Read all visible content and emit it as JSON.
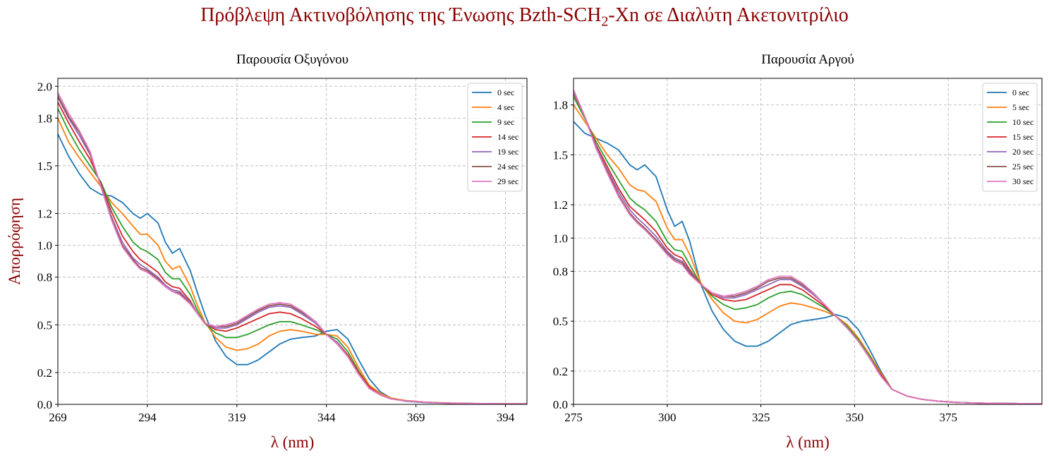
{
  "figure": {
    "title_prefix": "Πρόβλεψη Ακτινοβόλησης της Ένωσης Bzth-SCH",
    "title_sub": "2",
    "title_suffix": "-Xn σε Διαλύτη Ακετονιτρίλιο",
    "title_color": "#8b0000"
  },
  "chart_data": [
    {
      "type": "line",
      "title": "Παρουσία Οξυγόνου",
      "xlabel": "λ (nm)",
      "ylabel": "Απορρόφηση",
      "xlim": [
        269,
        400
      ],
      "ylim": [
        0,
        2.05
      ],
      "xticks": [
        269,
        294,
        319,
        344,
        369,
        394
      ],
      "yticks": [
        0.0,
        0.2,
        0.5,
        0.8,
        1.0,
        1.2,
        1.5,
        1.8,
        2.0
      ],
      "ytick_labels": [
        "0.0",
        "0.2",
        "0.5",
        "0.8",
        "1.0",
        "1.2",
        "1.5",
        "1.8",
        "2.0"
      ],
      "grid": true,
      "legend": "top-right",
      "x": [
        269,
        272,
        275,
        278,
        281,
        284,
        287,
        290,
        292,
        294,
        297,
        299,
        301,
        303,
        306,
        308,
        310,
        313,
        316,
        319,
        322,
        325,
        328,
        331,
        334,
        337,
        341,
        344,
        347,
        350,
        353,
        356,
        359,
        362,
        366,
        371,
        376,
        381,
        386,
        391,
        396,
        400
      ],
      "series": [
        {
          "name": "0 sec",
          "color": "#1f77b4",
          "values": [
            1.7,
            1.56,
            1.45,
            1.36,
            1.32,
            1.31,
            1.27,
            1.2,
            1.17,
            1.2,
            1.14,
            1.02,
            0.95,
            0.98,
            0.84,
            0.7,
            0.57,
            0.4,
            0.3,
            0.25,
            0.25,
            0.28,
            0.33,
            0.38,
            0.41,
            0.42,
            0.43,
            0.46,
            0.47,
            0.41,
            0.28,
            0.16,
            0.08,
            0.04,
            0.02,
            0.012,
            0.008,
            0.005,
            0.004,
            0.003,
            0.002,
            0.002
          ]
        },
        {
          "name": "4 sec",
          "color": "#ff7f0e",
          "values": [
            1.8,
            1.65,
            1.55,
            1.46,
            1.37,
            1.27,
            1.2,
            1.12,
            1.07,
            1.07,
            1.0,
            0.9,
            0.85,
            0.87,
            0.74,
            0.62,
            0.52,
            0.42,
            0.36,
            0.34,
            0.35,
            0.38,
            0.43,
            0.46,
            0.47,
            0.46,
            0.44,
            0.44,
            0.43,
            0.36,
            0.23,
            0.12,
            0.07,
            0.04,
            0.025,
            0.015,
            0.01,
            0.007,
            0.005,
            0.004,
            0.003,
            0.003
          ]
        },
        {
          "name": "9 sec",
          "color": "#2ca02c",
          "values": [
            1.86,
            1.72,
            1.6,
            1.5,
            1.4,
            1.24,
            1.12,
            1.02,
            0.98,
            0.96,
            0.91,
            0.83,
            0.79,
            0.79,
            0.69,
            0.59,
            0.51,
            0.45,
            0.42,
            0.42,
            0.44,
            0.47,
            0.5,
            0.52,
            0.52,
            0.5,
            0.47,
            0.44,
            0.41,
            0.33,
            0.21,
            0.11,
            0.06,
            0.035,
            0.022,
            0.014,
            0.009,
            0.006,
            0.005,
            0.004,
            0.003,
            0.003
          ]
        },
        {
          "name": "14 sec",
          "color": "#d62728",
          "values": [
            1.9,
            1.77,
            1.65,
            1.54,
            1.39,
            1.21,
            1.06,
            0.96,
            0.91,
            0.88,
            0.83,
            0.77,
            0.74,
            0.73,
            0.65,
            0.57,
            0.51,
            0.47,
            0.46,
            0.48,
            0.51,
            0.54,
            0.57,
            0.58,
            0.57,
            0.54,
            0.49,
            0.44,
            0.39,
            0.31,
            0.2,
            0.11,
            0.06,
            0.035,
            0.022,
            0.014,
            0.009,
            0.006,
            0.005,
            0.004,
            0.003,
            0.003
          ]
        },
        {
          "name": "19 sec",
          "color": "#9467bd",
          "values": [
            1.93,
            1.8,
            1.69,
            1.57,
            1.38,
            1.18,
            1.02,
            0.92,
            0.88,
            0.85,
            0.8,
            0.75,
            0.72,
            0.71,
            0.64,
            0.57,
            0.51,
            0.48,
            0.48,
            0.5,
            0.54,
            0.58,
            0.61,
            0.62,
            0.61,
            0.57,
            0.51,
            0.44,
            0.39,
            0.3,
            0.19,
            0.1,
            0.06,
            0.035,
            0.022,
            0.014,
            0.009,
            0.006,
            0.005,
            0.004,
            0.003,
            0.003
          ]
        },
        {
          "name": "24 sec",
          "color": "#8c564b",
          "values": [
            1.94,
            1.81,
            1.71,
            1.58,
            1.37,
            1.17,
            1.0,
            0.91,
            0.86,
            0.84,
            0.79,
            0.74,
            0.71,
            0.7,
            0.63,
            0.57,
            0.51,
            0.49,
            0.49,
            0.51,
            0.55,
            0.59,
            0.62,
            0.63,
            0.62,
            0.58,
            0.52,
            0.44,
            0.38,
            0.3,
            0.19,
            0.1,
            0.06,
            0.035,
            0.022,
            0.014,
            0.009,
            0.006,
            0.005,
            0.004,
            0.003,
            0.003
          ]
        },
        {
          "name": "29 sec",
          "color": "#e377c2",
          "values": [
            1.96,
            1.83,
            1.72,
            1.59,
            1.37,
            1.16,
            0.99,
            0.9,
            0.85,
            0.83,
            0.78,
            0.74,
            0.71,
            0.69,
            0.63,
            0.57,
            0.51,
            0.49,
            0.5,
            0.52,
            0.56,
            0.6,
            0.63,
            0.64,
            0.63,
            0.59,
            0.52,
            0.44,
            0.38,
            0.3,
            0.19,
            0.1,
            0.06,
            0.035,
            0.022,
            0.014,
            0.009,
            0.006,
            0.005,
            0.004,
            0.003,
            0.003
          ]
        }
      ]
    },
    {
      "type": "line",
      "title": "Παρουσία Αργού",
      "xlabel": "λ (nm)",
      "ylabel": "",
      "xlim": [
        275,
        400
      ],
      "ylim": [
        0,
        1.96
      ],
      "xticks": [
        275,
        300,
        325,
        350,
        375
      ],
      "yticks": [
        0.0,
        0.2,
        0.5,
        0.8,
        1.0,
        1.2,
        1.5,
        1.8
      ],
      "ytick_labels": [
        "0.0",
        "0.2",
        "0.5",
        "0.8",
        "1.0",
        "1.2",
        "1.5",
        "1.8"
      ],
      "grid": true,
      "legend": "top-right",
      "x": [
        275,
        278,
        281,
        284,
        287,
        290,
        292,
        294,
        297,
        300,
        302,
        304,
        306,
        309,
        312,
        315,
        318,
        321,
        324,
        327,
        330,
        333,
        336,
        339,
        342,
        345,
        348,
        351,
        354,
        357,
        360,
        364,
        368,
        372,
        377,
        382,
        387,
        392,
        397,
        400
      ],
      "series": [
        {
          "name": "0 sec",
          "color": "#1f77b4",
          "values": [
            1.7,
            1.63,
            1.6,
            1.57,
            1.53,
            1.44,
            1.41,
            1.44,
            1.37,
            1.17,
            1.07,
            1.1,
            0.98,
            0.72,
            0.56,
            0.45,
            0.38,
            0.35,
            0.35,
            0.38,
            0.43,
            0.48,
            0.5,
            0.51,
            0.52,
            0.54,
            0.52,
            0.45,
            0.33,
            0.2,
            0.09,
            0.05,
            0.03,
            0.02,
            0.012,
            0.008,
            0.006,
            0.005,
            0.004,
            0.004
          ]
        },
        {
          "name": "5 sec",
          "color": "#ff7f0e",
          "values": [
            1.8,
            1.7,
            1.6,
            1.5,
            1.42,
            1.32,
            1.29,
            1.28,
            1.22,
            1.06,
            0.99,
            0.99,
            0.9,
            0.73,
            0.63,
            0.55,
            0.5,
            0.49,
            0.51,
            0.55,
            0.59,
            0.61,
            0.6,
            0.58,
            0.56,
            0.53,
            0.48,
            0.4,
            0.3,
            0.19,
            0.09,
            0.05,
            0.03,
            0.02,
            0.012,
            0.008,
            0.006,
            0.005,
            0.004,
            0.004
          ]
        },
        {
          "name": "10 sec",
          "color": "#2ca02c",
          "values": [
            1.85,
            1.72,
            1.58,
            1.46,
            1.35,
            1.24,
            1.2,
            1.17,
            1.1,
            0.98,
            0.93,
            0.92,
            0.84,
            0.72,
            0.65,
            0.6,
            0.57,
            0.58,
            0.6,
            0.64,
            0.67,
            0.68,
            0.66,
            0.62,
            0.58,
            0.53,
            0.47,
            0.39,
            0.29,
            0.18,
            0.09,
            0.05,
            0.03,
            0.02,
            0.012,
            0.008,
            0.006,
            0.005,
            0.004,
            0.004
          ]
        },
        {
          "name": "15 sec",
          "color": "#d62728",
          "values": [
            1.87,
            1.73,
            1.56,
            1.43,
            1.3,
            1.19,
            1.15,
            1.11,
            1.04,
            0.94,
            0.9,
            0.88,
            0.81,
            0.72,
            0.66,
            0.63,
            0.62,
            0.63,
            0.66,
            0.69,
            0.72,
            0.72,
            0.69,
            0.64,
            0.59,
            0.53,
            0.46,
            0.38,
            0.28,
            0.18,
            0.09,
            0.05,
            0.03,
            0.02,
            0.012,
            0.008,
            0.006,
            0.005,
            0.004,
            0.004
          ]
        },
        {
          "name": "20 sec",
          "color": "#9467bd",
          "values": [
            1.88,
            1.73,
            1.55,
            1.41,
            1.28,
            1.17,
            1.12,
            1.08,
            1.01,
            0.92,
            0.88,
            0.86,
            0.8,
            0.72,
            0.67,
            0.64,
            0.64,
            0.66,
            0.69,
            0.72,
            0.75,
            0.75,
            0.71,
            0.66,
            0.6,
            0.53,
            0.46,
            0.38,
            0.28,
            0.17,
            0.09,
            0.05,
            0.03,
            0.02,
            0.012,
            0.008,
            0.006,
            0.005,
            0.004,
            0.004
          ]
        },
        {
          "name": "25 sec",
          "color": "#8c564b",
          "values": [
            1.89,
            1.73,
            1.54,
            1.4,
            1.26,
            1.15,
            1.1,
            1.06,
            0.99,
            0.91,
            0.87,
            0.85,
            0.79,
            0.72,
            0.67,
            0.65,
            0.65,
            0.67,
            0.7,
            0.74,
            0.76,
            0.76,
            0.72,
            0.67,
            0.6,
            0.53,
            0.46,
            0.38,
            0.28,
            0.17,
            0.09,
            0.05,
            0.03,
            0.02,
            0.012,
            0.008,
            0.006,
            0.005,
            0.004,
            0.004
          ]
        },
        {
          "name": "30 sec",
          "color": "#e377c2",
          "values": [
            1.89,
            1.73,
            1.54,
            1.39,
            1.25,
            1.14,
            1.09,
            1.05,
            0.98,
            0.9,
            0.86,
            0.84,
            0.78,
            0.72,
            0.67,
            0.65,
            0.66,
            0.68,
            0.71,
            0.75,
            0.77,
            0.77,
            0.73,
            0.67,
            0.6,
            0.53,
            0.46,
            0.38,
            0.28,
            0.17,
            0.09,
            0.05,
            0.03,
            0.02,
            0.012,
            0.008,
            0.006,
            0.005,
            0.004,
            0.004
          ]
        }
      ]
    }
  ]
}
